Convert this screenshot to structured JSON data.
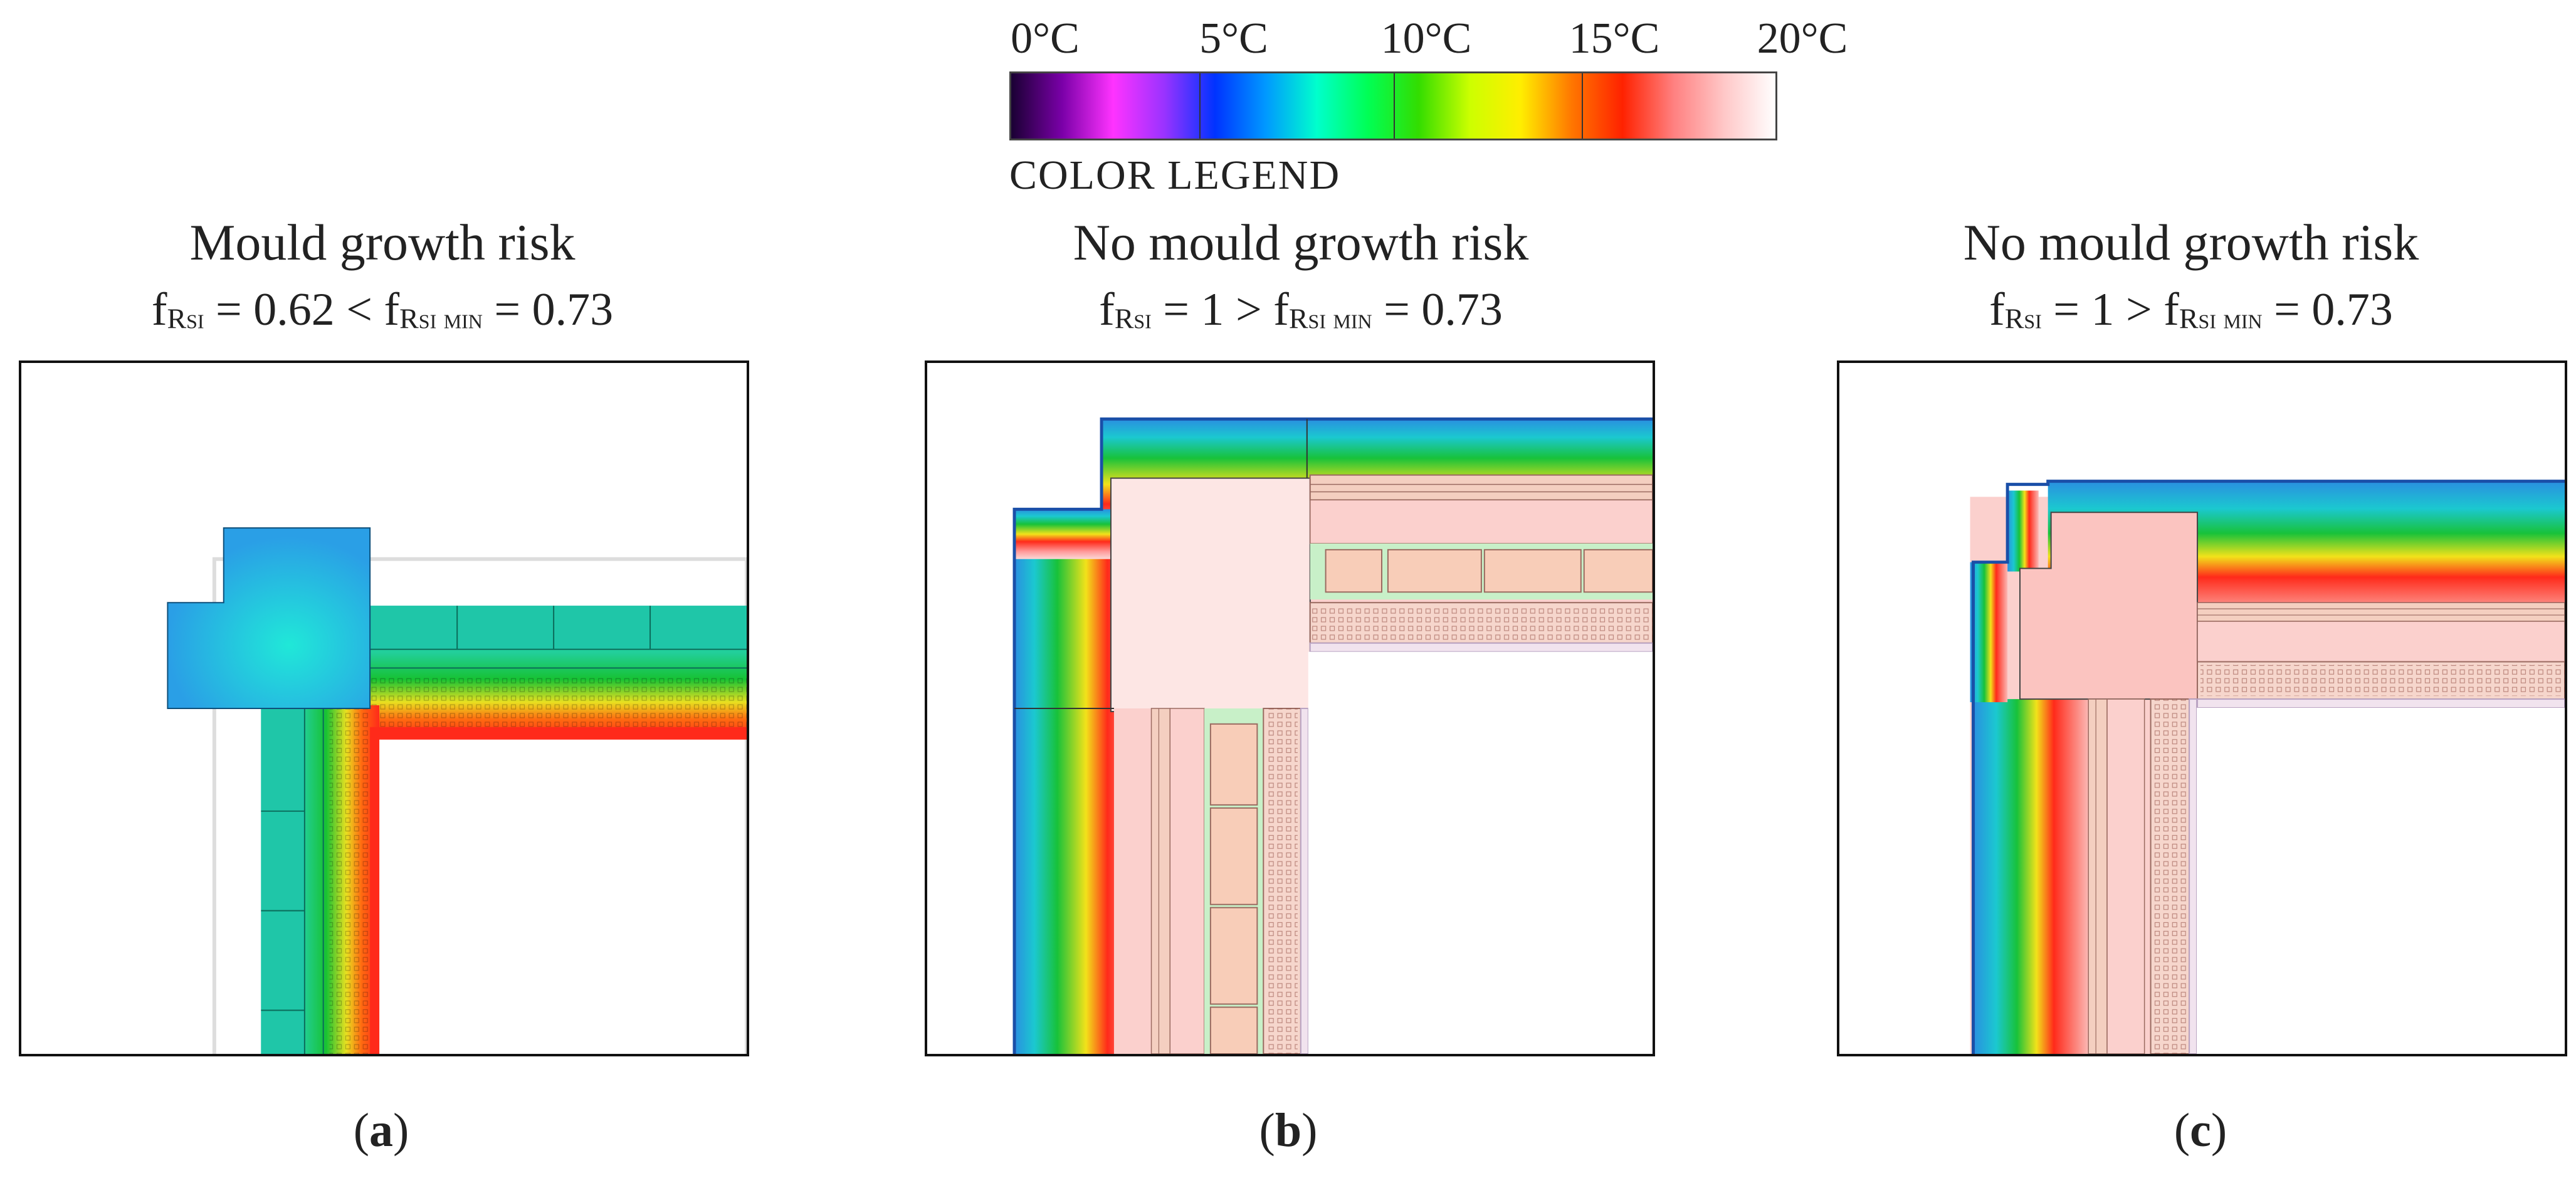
{
  "legend": {
    "ticks": [
      "0°C",
      "5°C",
      "10°C",
      "15°C",
      "20°C"
    ],
    "caption": "COLOR LEGEND",
    "gradient_stops": [
      "#1a0033",
      "#7a00a8",
      "#ff33ff",
      "#9a33ff",
      "#0033ff",
      "#0099ff",
      "#00ffcc",
      "#00ff55",
      "#33dd00",
      "#ccff00",
      "#ffee00",
      "#ff7700",
      "#ff2200",
      "#ff8080",
      "#ffc8c8",
      "#ffffff"
    ]
  },
  "panels": [
    {
      "title": "Mould growth risk",
      "formula": {
        "f1": "f",
        "s1": "Rsi",
        "eq1": " = 0.62 < ",
        "f2": "f",
        "s2": "Rsi min",
        "eq2": " = 0.73"
      },
      "label": {
        "open": "(",
        "letter": "a",
        "close": ")"
      }
    },
    {
      "title": "No mould growth risk",
      "formula": {
        "f1": "f",
        "s1": "Rsi",
        "eq1": " = 1 > ",
        "f2": "f",
        "s2": "Rsi min",
        "eq2": " = 0.73"
      },
      "label": {
        "open": "(",
        "letter": "b",
        "close": ")"
      }
    },
    {
      "title": "No mould growth risk",
      "formula": {
        "f1": "f",
        "s1": "Rsi",
        "eq1": " = 1 > ",
        "f2": "f",
        "s2": "Rsi min",
        "eq2": " = 0.73"
      },
      "label": {
        "open": "(",
        "letter": "c",
        "close": ")"
      }
    }
  ],
  "colors": {
    "cold_blue": "#2f9ce8",
    "cyan": "#20d6c4",
    "green": "#18c23a",
    "yellow": "#f2e21a",
    "red": "#ff2a1a",
    "warm_pink": "#fbd0cd",
    "frame": "#111111"
  }
}
